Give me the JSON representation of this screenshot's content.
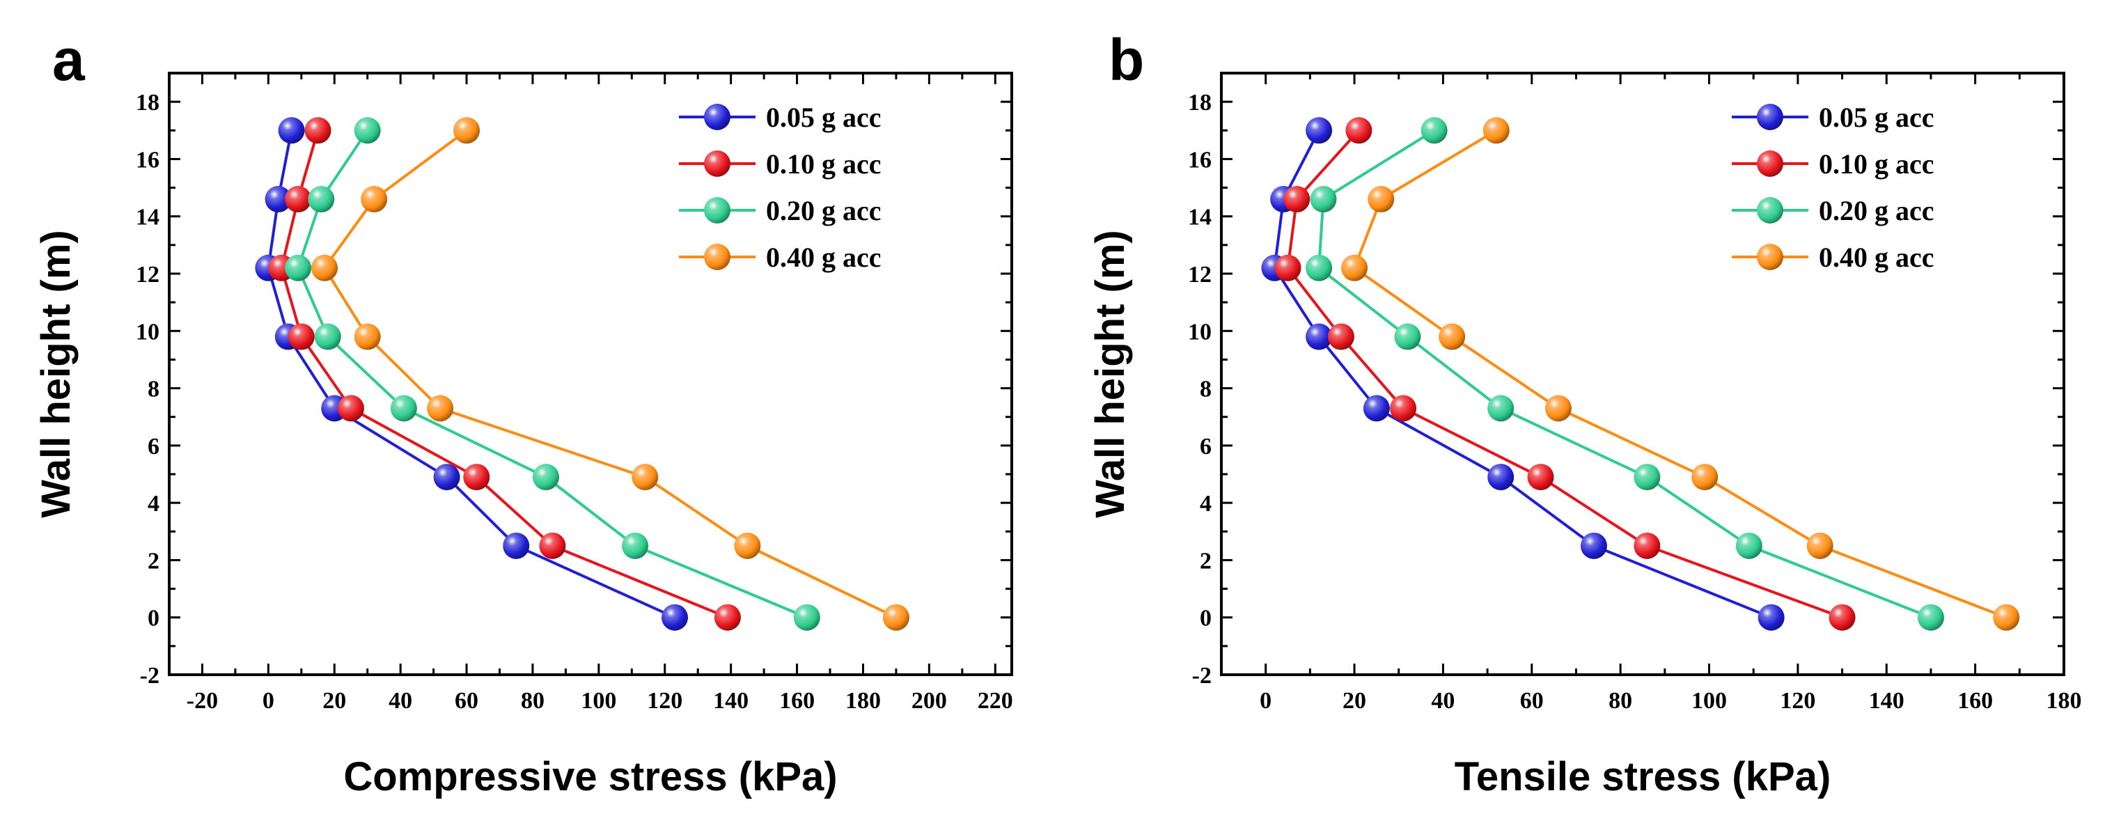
{
  "chart_data": [
    {
      "type": "line",
      "panel_label": "a",
      "xlabel": "Compressive stress (kPa)",
      "ylabel": "Wall height (m)",
      "xlim": [
        -30,
        225
      ],
      "ylim": [
        -2,
        19
      ],
      "xticks": [
        -20,
        0,
        20,
        40,
        60,
        80,
        100,
        120,
        140,
        160,
        180,
        200,
        220
      ],
      "yticks": [
        -2,
        0,
        2,
        4,
        6,
        8,
        10,
        12,
        14,
        16,
        18
      ],
      "legend_position": "top-right",
      "series": [
        {
          "name": "0.05 g acc",
          "color": "#1f1fd6",
          "x": [
            123,
            75,
            54,
            20,
            6,
            0,
            3,
            7
          ],
          "y": [
            0,
            2.5,
            4.9,
            7.3,
            9.8,
            12.2,
            14.6,
            17
          ]
        },
        {
          "name": "0.10 g acc",
          "color": "#e8141c",
          "x": [
            139,
            86,
            63,
            25,
            10,
            4,
            9,
            15
          ],
          "y": [
            0,
            2.5,
            4.9,
            7.3,
            9.8,
            12.2,
            14.6,
            17
          ]
        },
        {
          "name": "0.20 g acc",
          "color": "#2ecc8e",
          "x": [
            163,
            111,
            84,
            41,
            18,
            9,
            16,
            30
          ],
          "y": [
            0,
            2.5,
            4.9,
            7.3,
            9.8,
            12.2,
            14.6,
            17
          ]
        },
        {
          "name": "0.40 g acc",
          "color": "#ff8c12",
          "x": [
            190,
            145,
            114,
            52,
            30,
            17,
            32,
            60
          ],
          "y": [
            0,
            2.5,
            4.9,
            7.3,
            9.8,
            12.2,
            14.6,
            17
          ]
        }
      ]
    },
    {
      "type": "line",
      "panel_label": "b",
      "xlabel": "Tensile stress (kPa)",
      "ylabel": "Wall height (m)",
      "xlim": [
        -10,
        180
      ],
      "ylim": [
        -2,
        19
      ],
      "xticks": [
        0,
        20,
        40,
        60,
        80,
        100,
        120,
        140,
        160,
        180
      ],
      "yticks": [
        -2,
        0,
        2,
        4,
        6,
        8,
        10,
        12,
        14,
        16,
        18
      ],
      "legend_position": "top-right",
      "series": [
        {
          "name": "0.05 g acc",
          "color": "#1f1fd6",
          "x": [
            114,
            74,
            53,
            25,
            12,
            2,
            4,
            12
          ],
          "y": [
            0,
            2.5,
            4.9,
            7.3,
            9.8,
            12.2,
            14.6,
            17
          ]
        },
        {
          "name": "0.10 g acc",
          "color": "#e8141c",
          "x": [
            130,
            86,
            62,
            31,
            17,
            5,
            7,
            21
          ],
          "y": [
            0,
            2.5,
            4.9,
            7.3,
            9.8,
            12.2,
            14.6,
            17
          ]
        },
        {
          "name": "0.20 g acc",
          "color": "#2ecc8e",
          "x": [
            150,
            109,
            86,
            53,
            32,
            12,
            13,
            38
          ],
          "y": [
            0,
            2.5,
            4.9,
            7.3,
            9.8,
            12.2,
            14.6,
            17
          ]
        },
        {
          "name": "0.40 g acc",
          "color": "#ff8c12",
          "x": [
            167,
            125,
            99,
            66,
            42,
            20,
            26,
            52
          ],
          "y": [
            0,
            2.5,
            4.9,
            7.3,
            9.8,
            12.2,
            14.6,
            17
          ]
        }
      ]
    }
  ]
}
